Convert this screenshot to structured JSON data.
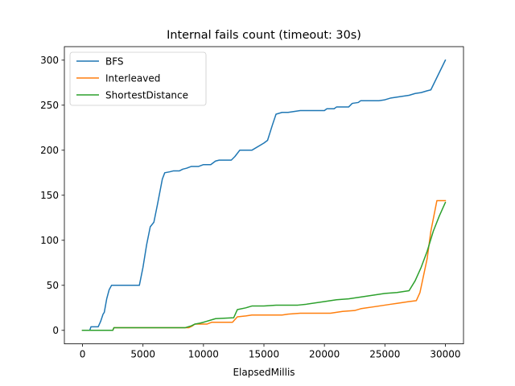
{
  "chart_data": {
    "type": "line",
    "title": "Internal fails count (timeout: 30s)",
    "xlabel": "ElapsedMillis",
    "ylabel": "",
    "xlim": [
      -1500,
      31500
    ],
    "ylim": [
      -15,
      315
    ],
    "xticks": [
      0,
      5000,
      10000,
      15000,
      20000,
      25000,
      30000
    ],
    "yticks": [
      0,
      50,
      100,
      150,
      200,
      250,
      300
    ],
    "grid": false,
    "legend_position": "upper-left",
    "series": [
      {
        "name": "BFS",
        "color": "#1f77b4",
        "points": [
          [
            0,
            0
          ],
          [
            600,
            0
          ],
          [
            700,
            4
          ],
          [
            1300,
            4
          ],
          [
            1500,
            10
          ],
          [
            1700,
            18
          ],
          [
            1800,
            20
          ],
          [
            2000,
            35
          ],
          [
            2200,
            45
          ],
          [
            2400,
            50
          ],
          [
            4700,
            50
          ],
          [
            5000,
            70
          ],
          [
            5300,
            95
          ],
          [
            5600,
            115
          ],
          [
            5900,
            120
          ],
          [
            6200,
            140
          ],
          [
            6600,
            168
          ],
          [
            6800,
            175
          ],
          [
            7200,
            176
          ],
          [
            7500,
            177
          ],
          [
            8000,
            177
          ],
          [
            8300,
            179
          ],
          [
            8600,
            180
          ],
          [
            9000,
            182
          ],
          [
            9600,
            182
          ],
          [
            10000,
            184
          ],
          [
            10600,
            184
          ],
          [
            11000,
            188
          ],
          [
            11300,
            189
          ],
          [
            12300,
            189
          ],
          [
            12600,
            193
          ],
          [
            13000,
            200
          ],
          [
            14000,
            200
          ],
          [
            15000,
            208
          ],
          [
            15300,
            211
          ],
          [
            15700,
            228
          ],
          [
            16000,
            240
          ],
          [
            16500,
            242
          ],
          [
            17000,
            242
          ],
          [
            17500,
            243
          ],
          [
            18000,
            244
          ],
          [
            20000,
            244
          ],
          [
            20200,
            246
          ],
          [
            20800,
            246
          ],
          [
            21000,
            248
          ],
          [
            22000,
            248
          ],
          [
            22300,
            252
          ],
          [
            22800,
            253
          ],
          [
            23000,
            255
          ],
          [
            24500,
            255
          ],
          [
            25000,
            256
          ],
          [
            25500,
            258
          ],
          [
            26000,
            259
          ],
          [
            26500,
            260
          ],
          [
            27000,
            261
          ],
          [
            27500,
            263
          ],
          [
            28000,
            264
          ],
          [
            28500,
            266
          ],
          [
            28800,
            267
          ],
          [
            30000,
            300
          ]
        ]
      },
      {
        "name": "Interleaved",
        "color": "#ff7f0e",
        "points": [
          [
            0,
            0
          ],
          [
            2500,
            0
          ],
          [
            2600,
            3
          ],
          [
            8800,
            3
          ],
          [
            9100,
            5
          ],
          [
            9300,
            7
          ],
          [
            10300,
            7
          ],
          [
            10700,
            9
          ],
          [
            12400,
            9
          ],
          [
            12800,
            15
          ],
          [
            13500,
            16
          ],
          [
            14000,
            17
          ],
          [
            16500,
            17
          ],
          [
            17000,
            18
          ],
          [
            18000,
            19
          ],
          [
            20500,
            19
          ],
          [
            21000,
            20
          ],
          [
            21500,
            21
          ],
          [
            22500,
            22
          ],
          [
            23000,
            24
          ],
          [
            24000,
            26
          ],
          [
            25000,
            28
          ],
          [
            25500,
            29
          ],
          [
            26000,
            30
          ],
          [
            27000,
            32
          ],
          [
            27600,
            33
          ],
          [
            27900,
            42
          ],
          [
            28500,
            80
          ],
          [
            28800,
            110
          ],
          [
            29300,
            144
          ],
          [
            30000,
            144
          ]
        ]
      },
      {
        "name": "ShortestDistance",
        "color": "#2ca02c",
        "points": [
          [
            0,
            0
          ],
          [
            2500,
            0
          ],
          [
            2600,
            3
          ],
          [
            8500,
            3
          ],
          [
            9000,
            5
          ],
          [
            9300,
            7
          ],
          [
            9700,
            8
          ],
          [
            10000,
            9
          ],
          [
            10500,
            11
          ],
          [
            11000,
            13
          ],
          [
            12500,
            14
          ],
          [
            12800,
            23
          ],
          [
            13500,
            25
          ],
          [
            14000,
            27
          ],
          [
            15000,
            27
          ],
          [
            16000,
            28
          ],
          [
            17800,
            28
          ],
          [
            18500,
            29
          ],
          [
            20000,
            32
          ],
          [
            21000,
            34
          ],
          [
            22000,
            35
          ],
          [
            23000,
            37
          ],
          [
            24000,
            39
          ],
          [
            25000,
            41
          ],
          [
            26000,
            42
          ],
          [
            27000,
            44
          ],
          [
            27500,
            55
          ],
          [
            28000,
            70
          ],
          [
            28500,
            88
          ],
          [
            29000,
            110
          ],
          [
            29500,
            127
          ],
          [
            30000,
            142
          ]
        ]
      }
    ]
  }
}
